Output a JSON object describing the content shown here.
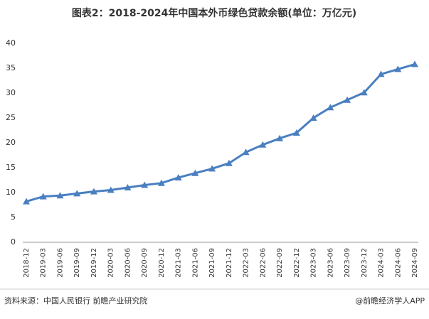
{
  "chart_data": {
    "type": "line",
    "title": "图表2：2018-2024年中国本外币绿色贷款余额(单位：万亿元)",
    "source": "资料来源：中国人民银行 前瞻产业研究院",
    "credit": "@前瞻经济学人APP",
    "categories": [
      "2018-12",
      "2019-03",
      "2019-06",
      "2019-09",
      "2019-12",
      "2020-03",
      "2020-06",
      "2020-09",
      "2020-12",
      "2021-03",
      "2021-06",
      "2021-09",
      "2021-12",
      "2022-03",
      "2022-06",
      "2022-09",
      "2022-12",
      "2023-03",
      "2023-06",
      "2023-09",
      "2023-12",
      "2024-03",
      "2024-06",
      "2024-09"
    ],
    "values": [
      8.2,
      9.2,
      9.4,
      9.8,
      10.2,
      10.5,
      11.0,
      11.5,
      11.9,
      13.0,
      13.9,
      14.8,
      15.9,
      18.1,
      19.6,
      20.9,
      22.0,
      25.0,
      27.1,
      28.6,
      30.1,
      33.8,
      34.8,
      35.8
    ],
    "color": "#4a7fc1",
    "ylim": [
      0,
      40
    ],
    "yticks": [
      0,
      5,
      10,
      15,
      20,
      25,
      30,
      35,
      40
    ],
    "grid": false
  }
}
